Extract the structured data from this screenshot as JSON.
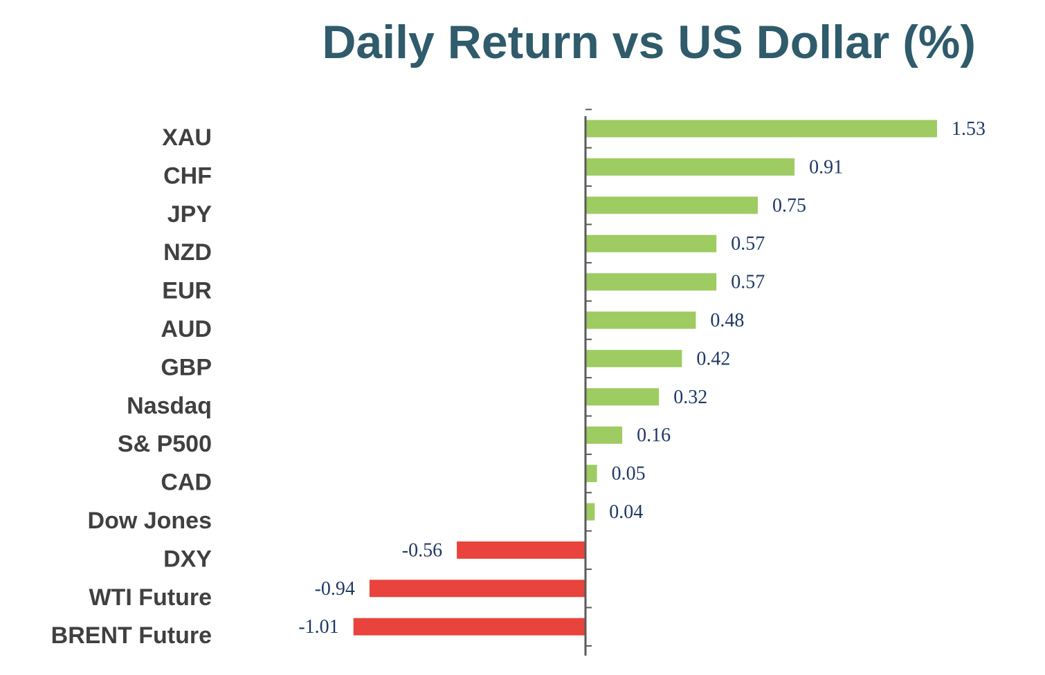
{
  "chart_data": {
    "type": "bar",
    "orientation": "horizontal",
    "title": "Daily Return vs US Dollar (%)",
    "categories": [
      "XAU",
      "CHF",
      "JPY",
      "NZD",
      "EUR",
      "AUD",
      "GBP",
      "Nasdaq",
      "S& P500",
      "CAD",
      "Dow Jones",
      "DXY",
      "WTI Future",
      "BRENT Future"
    ],
    "values": [
      1.53,
      0.91,
      0.75,
      0.57,
      0.57,
      0.48,
      0.42,
      0.32,
      0.16,
      0.05,
      0.04,
      -0.56,
      -0.94,
      -1.01
    ],
    "value_labels": [
      "1.53",
      "0.91",
      "0.75",
      "0.57",
      "0.57",
      "0.48",
      "0.42",
      "0.32",
      "0.16",
      "0.05",
      "0.04",
      "-0.56",
      "-0.94",
      "-1.01"
    ],
    "xlim": [
      -1.01,
      1.53
    ],
    "grid": false,
    "legend": "none",
    "colors": {
      "positive": "#9ecb62",
      "negative": "#e8433c",
      "title": "#2f5b6b",
      "axis": "#595959",
      "category_text": "#404040",
      "value_text": "#1f3864"
    }
  }
}
